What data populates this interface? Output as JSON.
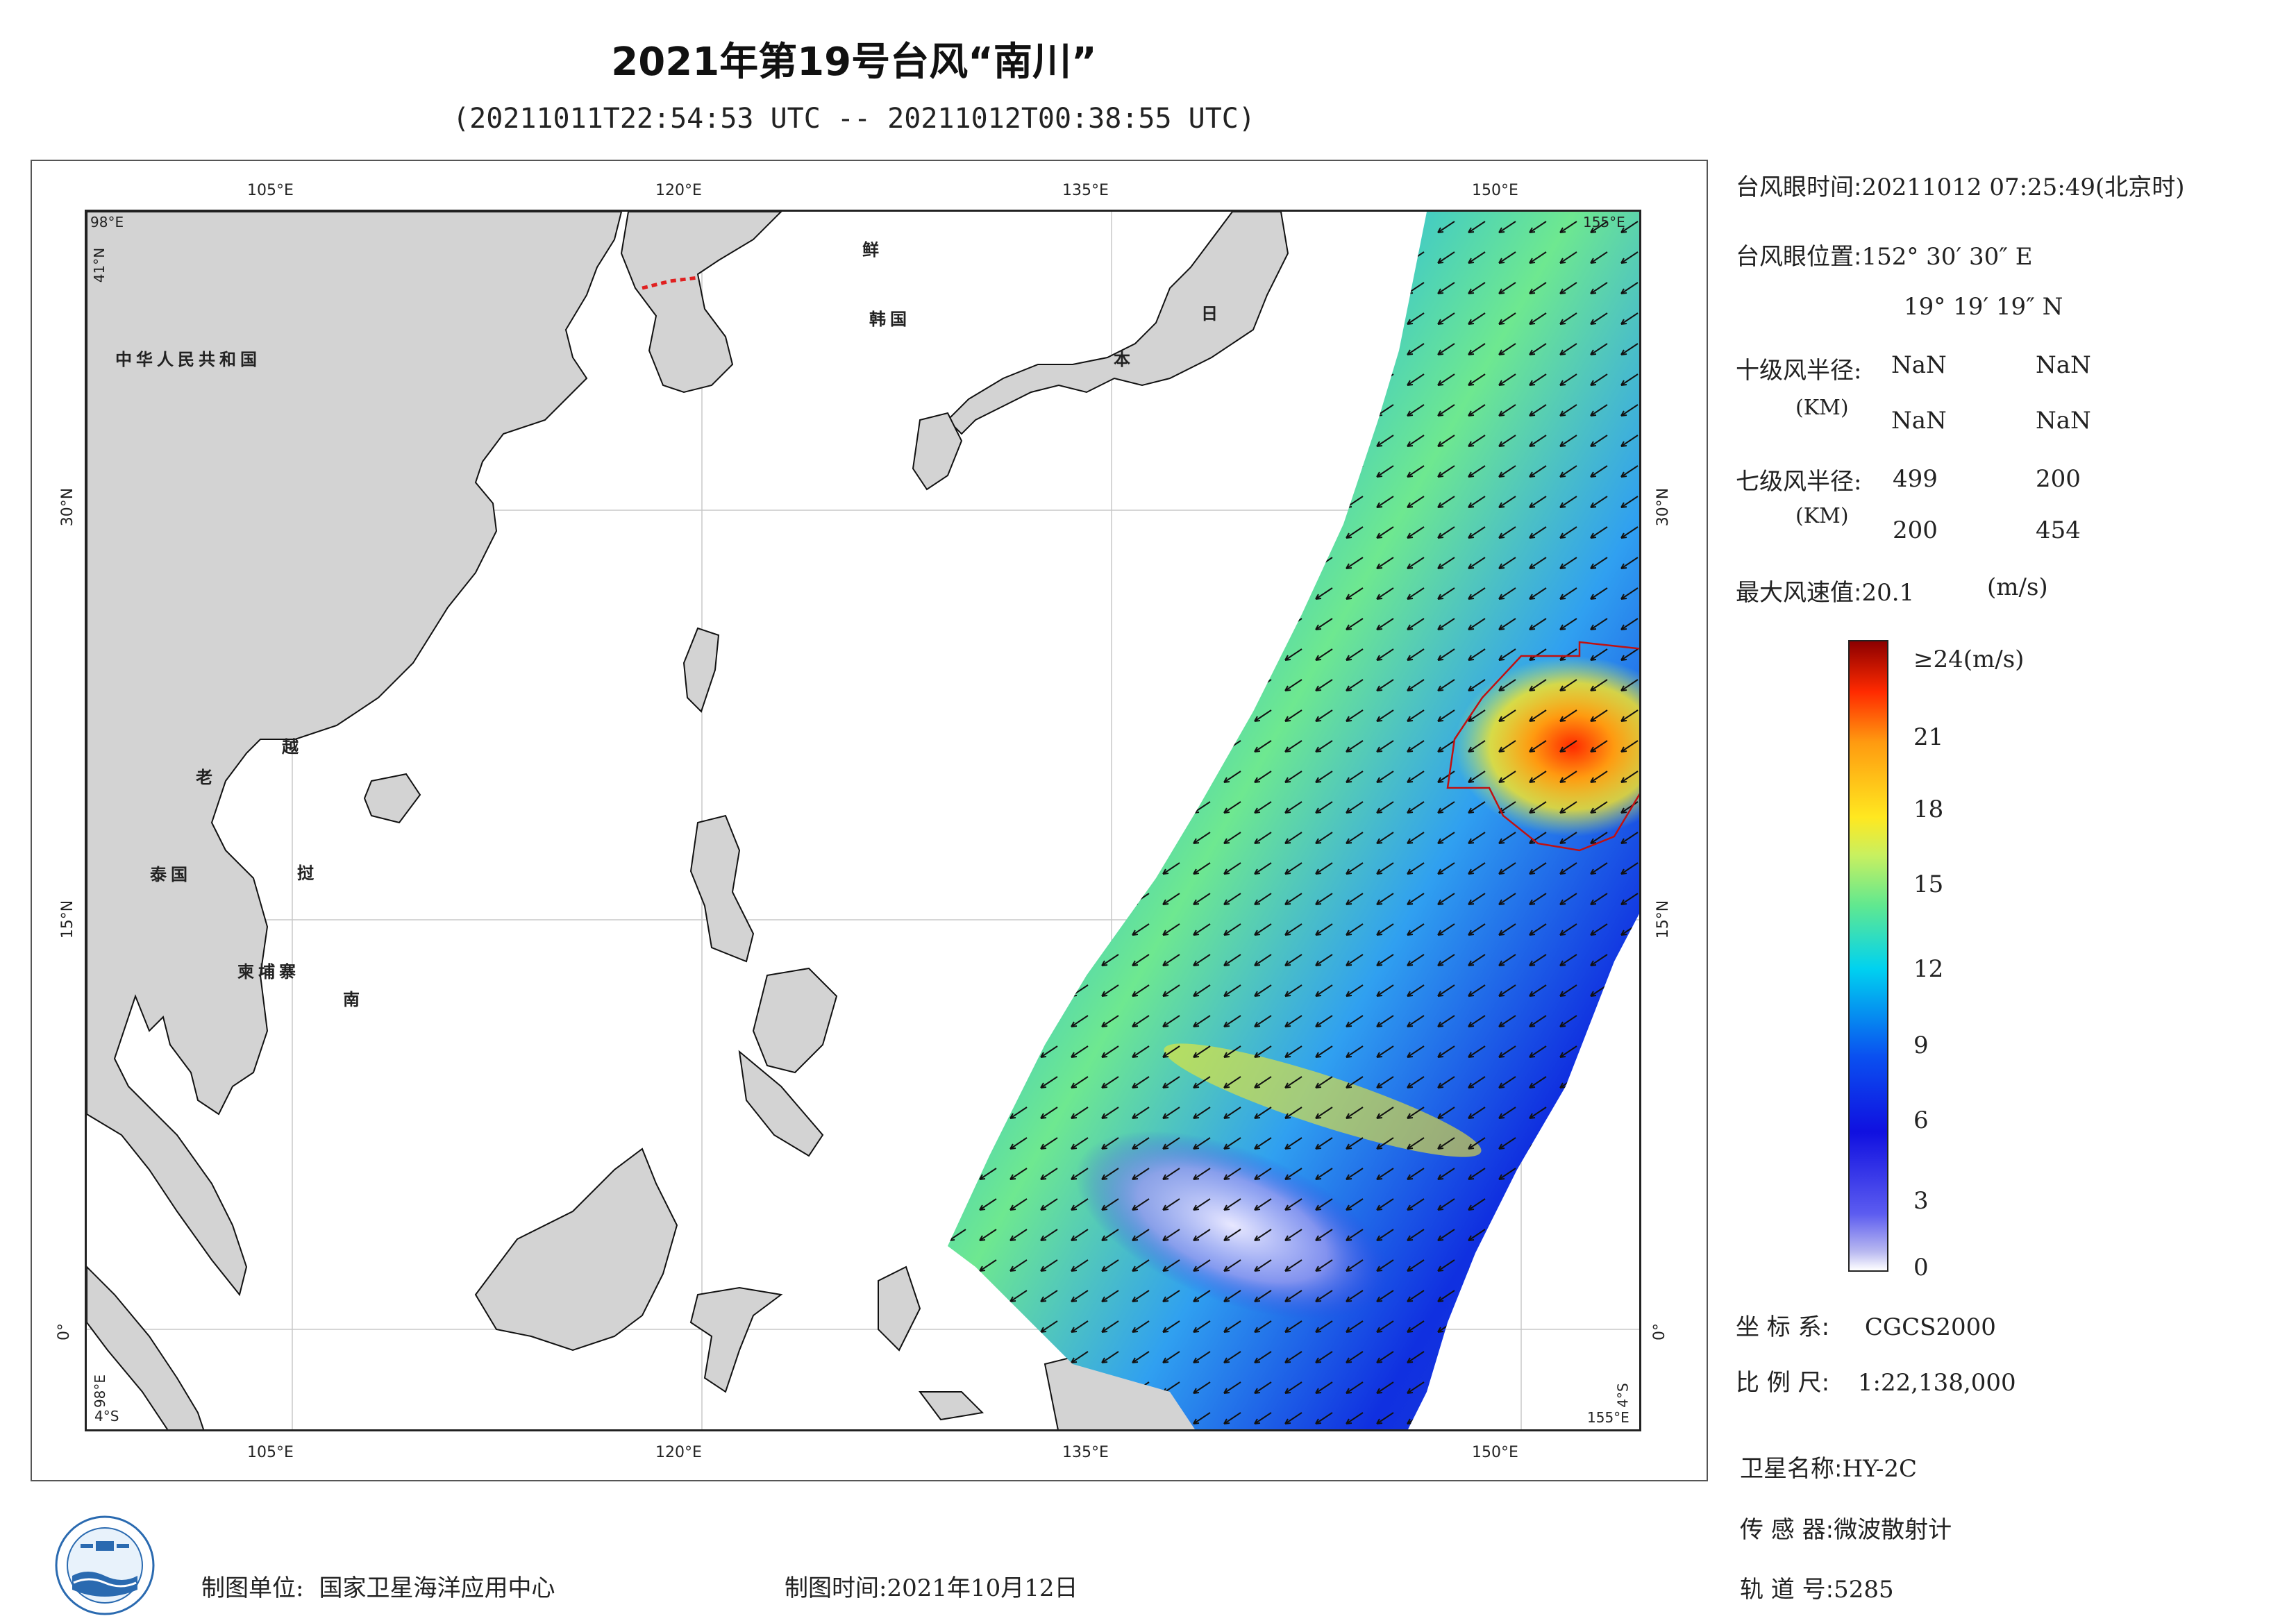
{
  "title": "2021年第19号台风“南川”",
  "subtitle": "(20211011T22:54:53 UTC -- 20211012T00:38:55 UTC)",
  "map": {
    "lon_ticks": [
      "105°E",
      "120°E",
      "135°E",
      "150°E"
    ],
    "lat_ticks": [
      "30°N",
      "15°N",
      "0°"
    ],
    "corner_top_left_lon": "98°E",
    "corner_top_left_lat": "41°N",
    "corner_top_right": "155°E",
    "corner_bottom_left_lat": "4°S",
    "corner_bottom_left_lon": "98°E",
    "corner_bottom_right_lat": "4°S",
    "corner_bottom_right_lon": "155°E",
    "labels": {
      "china": "中华人民共和国",
      "laos": "老",
      "vietnam_1": "越",
      "thailand": "泰国",
      "cambodia": "柬埔寨",
      "vietnam_2": "挝",
      "vietnam_3": "南",
      "korea_n": "鲜",
      "korea_s": "韩国",
      "japan_1": "日",
      "japan_2": "本"
    }
  },
  "info": {
    "eye_time_label": "台风眼时间:",
    "eye_time_value": "20211012 07:25:49(北京时)",
    "eye_pos_label": "台风眼位置:",
    "eye_pos_lon": "152° 30′ 30″ E",
    "eye_pos_lat": "19° 19′ 19″ N",
    "r10_label": "十级风半径:",
    "r10_unit": "(KM)",
    "r10_values": [
      "NaN",
      "NaN",
      "NaN",
      "NaN"
    ],
    "r7_label": "七级风半径:",
    "r7_unit": "(KM)",
    "r7_values": [
      "499",
      "200",
      "200",
      "454"
    ],
    "maxwind_label": "最大风速值:",
    "maxwind_value": "20.1",
    "maxwind_unit": "(m/s)"
  },
  "colorbar": {
    "top_label": "≥24(m/s)",
    "ticks": [
      "21",
      "18",
      "15",
      "12",
      "9",
      "6",
      "3",
      "0"
    ],
    "min": 0,
    "max": 24,
    "colors": [
      "#ffffff",
      "#5c5cf0",
      "#1010e0",
      "#0a50f0",
      "#00d2f0",
      "#60e890",
      "#ffe820",
      "#ff9a10",
      "#ff2a00",
      "#8c0000"
    ]
  },
  "meta": {
    "coord_label": "坐 标 系:",
    "coord_value": "CGCS2000",
    "scale_label": "比 例 尺:",
    "scale_value": "1:22,138,000",
    "sat_label": "卫星名称:",
    "sat_value": "HY-2C",
    "sensor_label": "传 感 器:",
    "sensor_value": "微波散射计",
    "orbit_label": "轨 道 号:",
    "orbit_value": "5285"
  },
  "footer": {
    "unit_label": "制图单位:",
    "unit_value": "国家卫星海洋应用中心",
    "time_label": "制图时间:",
    "time_value": "2021年10月12日"
  }
}
